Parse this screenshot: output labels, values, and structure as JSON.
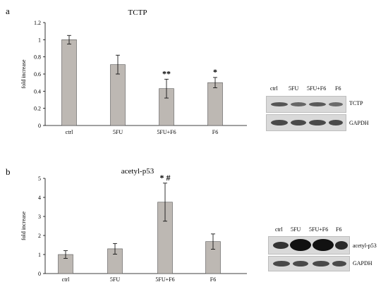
{
  "panels": [
    {
      "label": "a",
      "title": "TCTP",
      "blot": {
        "lanes": [
          "ctrl",
          "5FU",
          "5FU+F6",
          "F6"
        ],
        "rows": [
          "TCTP",
          "GAPDH"
        ]
      }
    },
    {
      "label": "b",
      "title": "acetyl-p53",
      "blot": {
        "lanes": [
          "ctrl",
          "5FU",
          "5FU+F6",
          "F6"
        ],
        "rows": [
          "acetyl-p53",
          "GAPDH"
        ]
      }
    }
  ],
  "chart_data": [
    {
      "type": "bar",
      "title": "TCTP",
      "ylabel": "fold increase",
      "categories": [
        "ctrl",
        "5FU",
        "5FU+F6",
        "F6"
      ],
      "values": [
        1.0,
        0.71,
        0.43,
        0.5
      ],
      "errors": [
        0.05,
        0.11,
        0.11,
        0.06
      ],
      "annotations": [
        "",
        "",
        "**",
        "*"
      ],
      "ylim": [
        0,
        1.2
      ],
      "yticks": [
        "0",
        "0.2",
        "0.4",
        "0.6",
        "0.8",
        "1",
        "1.2"
      ],
      "grid": false,
      "bar_color": "#bdb8b3"
    },
    {
      "type": "bar",
      "title": "acetyl-p53",
      "ylabel": "fold increase",
      "categories": [
        "ctrl",
        "5FU",
        "5FU+F6",
        "F6"
      ],
      "values": [
        1.0,
        1.3,
        3.75,
        1.68
      ],
      "errors": [
        0.2,
        0.28,
        1.0,
        0.4
      ],
      "annotations": [
        "",
        "",
        "* #",
        ""
      ],
      "ylim": [
        0,
        5
      ],
      "yticks": [
        "0",
        "1",
        "2",
        "3",
        "4",
        "5"
      ],
      "grid": false,
      "bar_color": "#bdb8b3"
    }
  ]
}
